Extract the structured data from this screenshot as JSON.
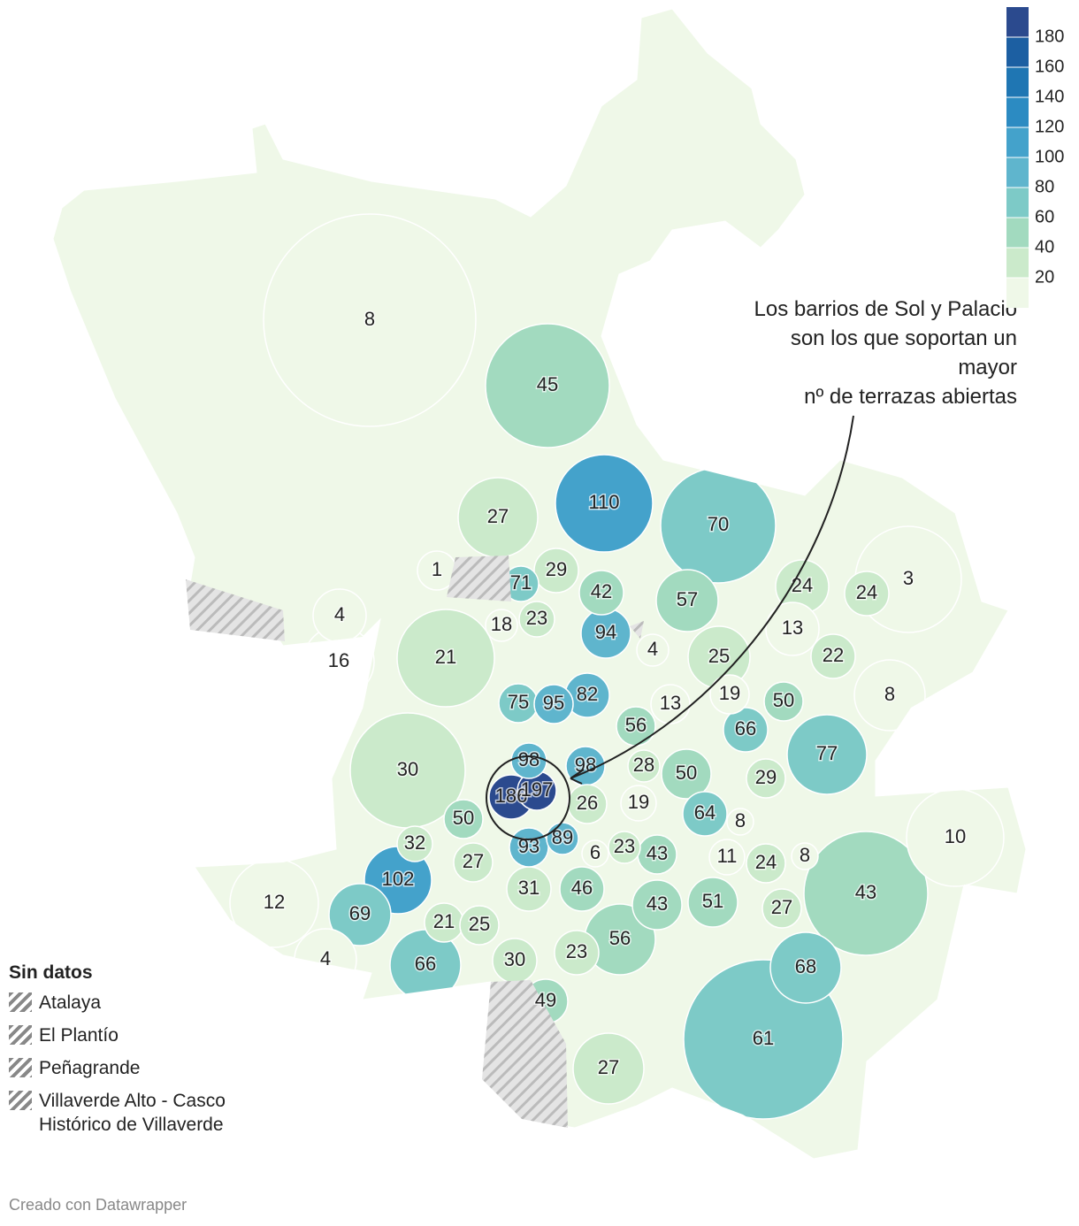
{
  "legend": {
    "ticks": [
      20,
      40,
      60,
      80,
      100,
      120,
      140,
      160,
      180
    ],
    "lim": [
      0,
      200
    ],
    "colors": [
      "#eff8e8",
      "#cbeacb",
      "#a2dabf",
      "#7dcac7",
      "#5fb5cd",
      "#44a2cb",
      "#2c8bc2",
      "#1f76b3",
      "#1c5fa2",
      "#2b4a8e"
    ]
  },
  "annotation": {
    "lines": [
      "Los barrios de Sol y Palacio",
      "son los que soportan un",
      "mayor",
      "nº de terrazas abiertas"
    ]
  },
  "regions": {
    "values": [
      8,
      45,
      110,
      70,
      27,
      1,
      71,
      29,
      42,
      57,
      24,
      24,
      3,
      4,
      18,
      23,
      94,
      4,
      13,
      16,
      21,
      25,
      22,
      75,
      95,
      82,
      13,
      19,
      50,
      8,
      56,
      66,
      77,
      30,
      98,
      98,
      28,
      50,
      29,
      186,
      197,
      26,
      19,
      64,
      8,
      10,
      50,
      32,
      93,
      89,
      6,
      23,
      43,
      11,
      24,
      8,
      27,
      102,
      31,
      46,
      43,
      51,
      27,
      43,
      12,
      69,
      21,
      25,
      56,
      4,
      66,
      30,
      23,
      68,
      49,
      61,
      27
    ]
  },
  "no_data": {
    "title": "Sin datos",
    "items": [
      "Atalaya",
      "El Plantío",
      "Peñagrande",
      "Villaverde Alto - Casco Histórico de Villaverde"
    ]
  },
  "footer": "Creado con Datawrapper"
}
